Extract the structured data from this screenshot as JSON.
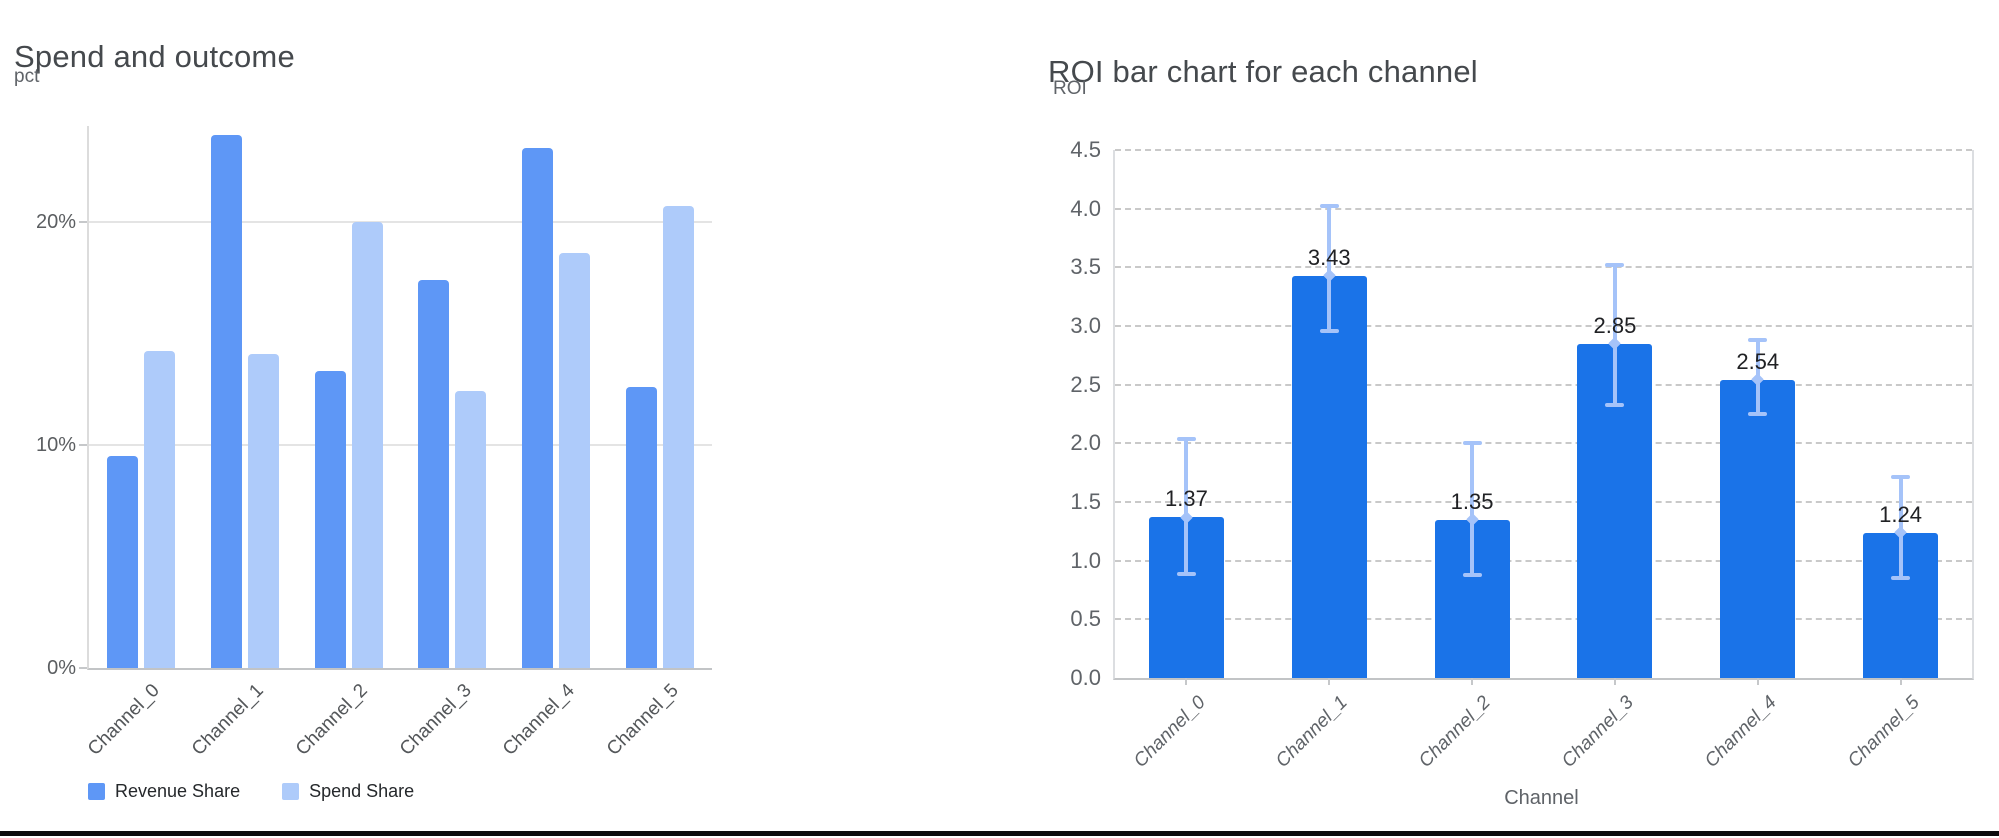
{
  "chart_data": [
    {
      "type": "bar",
      "title": "Spend and outcome",
      "ylabel": "pct",
      "xlabel": "",
      "categories": [
        "Channel_0",
        "Channel_1",
        "Channel_2",
        "Channel_3",
        "Channel_4",
        "Channel_5"
      ],
      "series": [
        {
          "name": "Revenue Share",
          "color": "#5e97f6",
          "values": [
            9.5,
            23.9,
            13.3,
            17.4,
            23.3,
            12.6
          ]
        },
        {
          "name": "Spend Share",
          "color": "#aecbfa",
          "values": [
            14.2,
            14.1,
            20.0,
            12.4,
            18.6,
            20.7
          ]
        }
      ],
      "value_unit": "percent",
      "yticks": [
        {
          "value": 0,
          "label": "0%"
        },
        {
          "value": 10,
          "label": "10%"
        },
        {
          "value": 20,
          "label": "20%"
        }
      ],
      "ylim": [
        0,
        24.3
      ],
      "grid": "solid",
      "legend_position": "bottom-left"
    },
    {
      "type": "bar",
      "title": "ROI bar chart for each channel",
      "ylabel": "ROI",
      "xlabel": "Channel",
      "categories": [
        "Channel_0",
        "Channel_1",
        "Channel_2",
        "Channel_3",
        "Channel_4",
        "Channel_5"
      ],
      "series": [
        {
          "name": "ROI",
          "color": "#1a73e8",
          "values": [
            1.37,
            3.43,
            1.35,
            2.85,
            2.54,
            1.24
          ]
        }
      ],
      "bar_labels": [
        "1.37",
        "3.43",
        "1.35",
        "2.85",
        "2.54",
        "1.24"
      ],
      "error_bars": {
        "color": "#a5c3f9",
        "low": [
          0.89,
          2.96,
          0.88,
          2.33,
          2.25,
          0.85
        ],
        "high": [
          2.04,
          4.02,
          2.0,
          3.52,
          2.88,
          1.71
        ]
      },
      "yticks": [
        {
          "value": 0.0,
          "label": "0.0"
        },
        {
          "value": 0.5,
          "label": "0.5"
        },
        {
          "value": 1.0,
          "label": "1.0"
        },
        {
          "value": 1.5,
          "label": "1.5"
        },
        {
          "value": 2.0,
          "label": "2.0"
        },
        {
          "value": 2.5,
          "label": "2.5"
        },
        {
          "value": 3.0,
          "label": "3.0"
        },
        {
          "value": 3.5,
          "label": "3.5"
        },
        {
          "value": 4.0,
          "label": "4.0"
        },
        {
          "value": 4.5,
          "label": "4.5"
        }
      ],
      "ylim": [
        0,
        4.5
      ],
      "grid": "dashed",
      "legend_position": "none"
    }
  ]
}
